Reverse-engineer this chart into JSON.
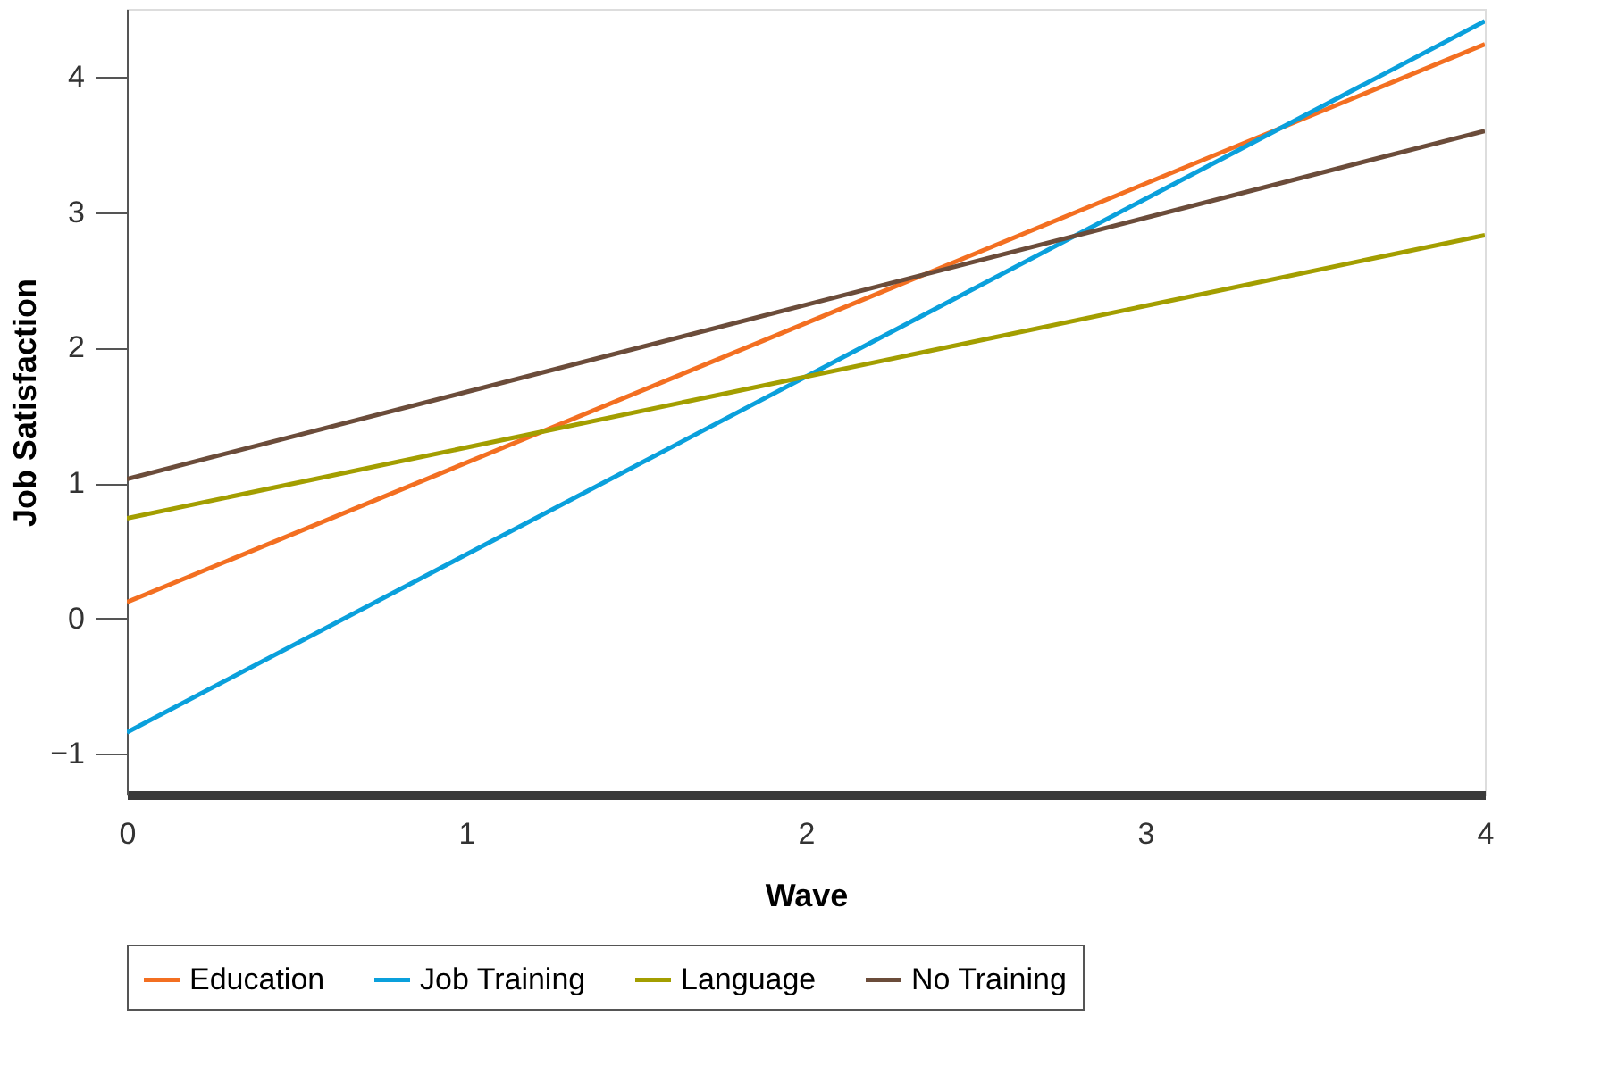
{
  "chart_data": {
    "type": "line",
    "xlabel": "Wave",
    "ylabel": "Job Satisfaction",
    "x": [
      0,
      4
    ],
    "series": [
      {
        "name": "Education",
        "color": "#f36f21",
        "values": [
          0.12,
          4.24
        ]
      },
      {
        "name": "Job Training",
        "color": "#0aa0dc",
        "values": [
          -0.84,
          4.41
        ]
      },
      {
        "name": "Language",
        "color": "#a39e00",
        "values": [
          0.74,
          2.83
        ]
      },
      {
        "name": "No Training",
        "color": "#6b4c3a",
        "values": [
          1.03,
          3.6
        ]
      }
    ],
    "xlim": [
      0,
      4
    ],
    "xticks": [
      0,
      1,
      2,
      3,
      4
    ],
    "ylim": [
      -1.3,
      4.5
    ],
    "yticks": [
      -1,
      0,
      1,
      2,
      3,
      4
    ],
    "grid": false,
    "legend": "bottom",
    "marker": "none",
    "line_style": "solid"
  }
}
